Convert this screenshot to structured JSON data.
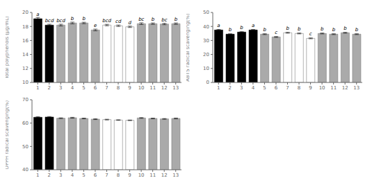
{
  "chart_data": [
    {
      "type": "bar",
      "ylabel": "Total polyphenols (μg/mL)",
      "ylim": [
        10,
        20
      ],
      "yticks": [
        10,
        12,
        14,
        16,
        18,
        20
      ],
      "grid": false,
      "categories": [
        "1",
        "2",
        "3",
        "4",
        "5",
        "6",
        "7",
        "8",
        "9",
        "10",
        "11",
        "12",
        "13"
      ],
      "values": [
        19.1,
        18.2,
        18.2,
        18.5,
        18.5,
        17.5,
        18.2,
        18.1,
        17.95,
        18.4,
        18.4,
        18.35,
        18.4
      ],
      "errors": [
        0.18,
        0.12,
        0.12,
        0.12,
        0.1,
        0.12,
        0.1,
        0.1,
        0.1,
        0.12,
        0.1,
        0.1,
        0.1
      ],
      "annotations": [
        "a",
        "bcd",
        "bcd",
        "b",
        "b",
        "e",
        "bcd",
        "cd",
        "d",
        "bc",
        "b",
        "bc",
        "b"
      ],
      "colors": [
        "#000000",
        "#000000",
        "#aaaaaa",
        "#aaaaaa",
        "#aaaaaa",
        "#aaaaaa",
        "#ffffff",
        "#ffffff",
        "#ffffff",
        "#aaaaaa",
        "#aaaaaa",
        "#aaaaaa",
        "#aaaaaa"
      ]
    },
    {
      "type": "bar",
      "ylabel": "ABTS radical scavenging(%)",
      "ylim": [
        0,
        50
      ],
      "yticks": [
        0,
        10,
        20,
        30,
        40,
        50
      ],
      "grid": false,
      "categories": [
        "1",
        "2",
        "3",
        "4",
        "5",
        "6",
        "7",
        "8",
        "9",
        "10",
        "11",
        "12",
        "13"
      ],
      "values": [
        37.5,
        34.5,
        36.0,
        37.5,
        34.5,
        32.5,
        35.5,
        35.0,
        31.5,
        35.0,
        34.5,
        35.5,
        34.5
      ],
      "errors": [
        0.4,
        0.3,
        0.3,
        0.35,
        0.3,
        0.3,
        0.3,
        0.3,
        0.3,
        0.3,
        0.3,
        0.3,
        0.3
      ],
      "annotations": [
        "a",
        "b",
        "b",
        "a",
        "b",
        "c",
        "b",
        "b",
        "c",
        "b",
        "b",
        "b",
        "b"
      ],
      "colors": [
        "#000000",
        "#000000",
        "#000000",
        "#000000",
        "#aaaaaa",
        "#aaaaaa",
        "#ffffff",
        "#ffffff",
        "#ffffff",
        "#aaaaaa",
        "#aaaaaa",
        "#aaaaaa",
        "#aaaaaa"
      ]
    },
    {
      "type": "bar",
      "ylabel": "DPPH radical scavenging(%)",
      "ylim": [
        40,
        70
      ],
      "yticks": [
        40,
        50,
        60,
        70
      ],
      "grid": false,
      "categories": [
        "1",
        "2",
        "3",
        "4",
        "5",
        "6",
        "7",
        "8",
        "9",
        "10",
        "11",
        "12",
        "13"
      ],
      "values": [
        62.5,
        62.6,
        62.1,
        62.3,
        62.0,
        61.7,
        61.5,
        61.3,
        61.2,
        62.2,
        62.0,
        61.8,
        62.0
      ],
      "errors": [
        0.25,
        0.2,
        0.15,
        0.18,
        0.15,
        0.18,
        0.15,
        0.12,
        0.12,
        0.15,
        0.15,
        0.15,
        0.18
      ],
      "colors": [
        "#000000",
        "#000000",
        "#aaaaaa",
        "#aaaaaa",
        "#aaaaaa",
        "#aaaaaa",
        "#ffffff",
        "#ffffff",
        "#ffffff",
        "#aaaaaa",
        "#aaaaaa",
        "#aaaaaa",
        "#aaaaaa"
      ]
    }
  ]
}
